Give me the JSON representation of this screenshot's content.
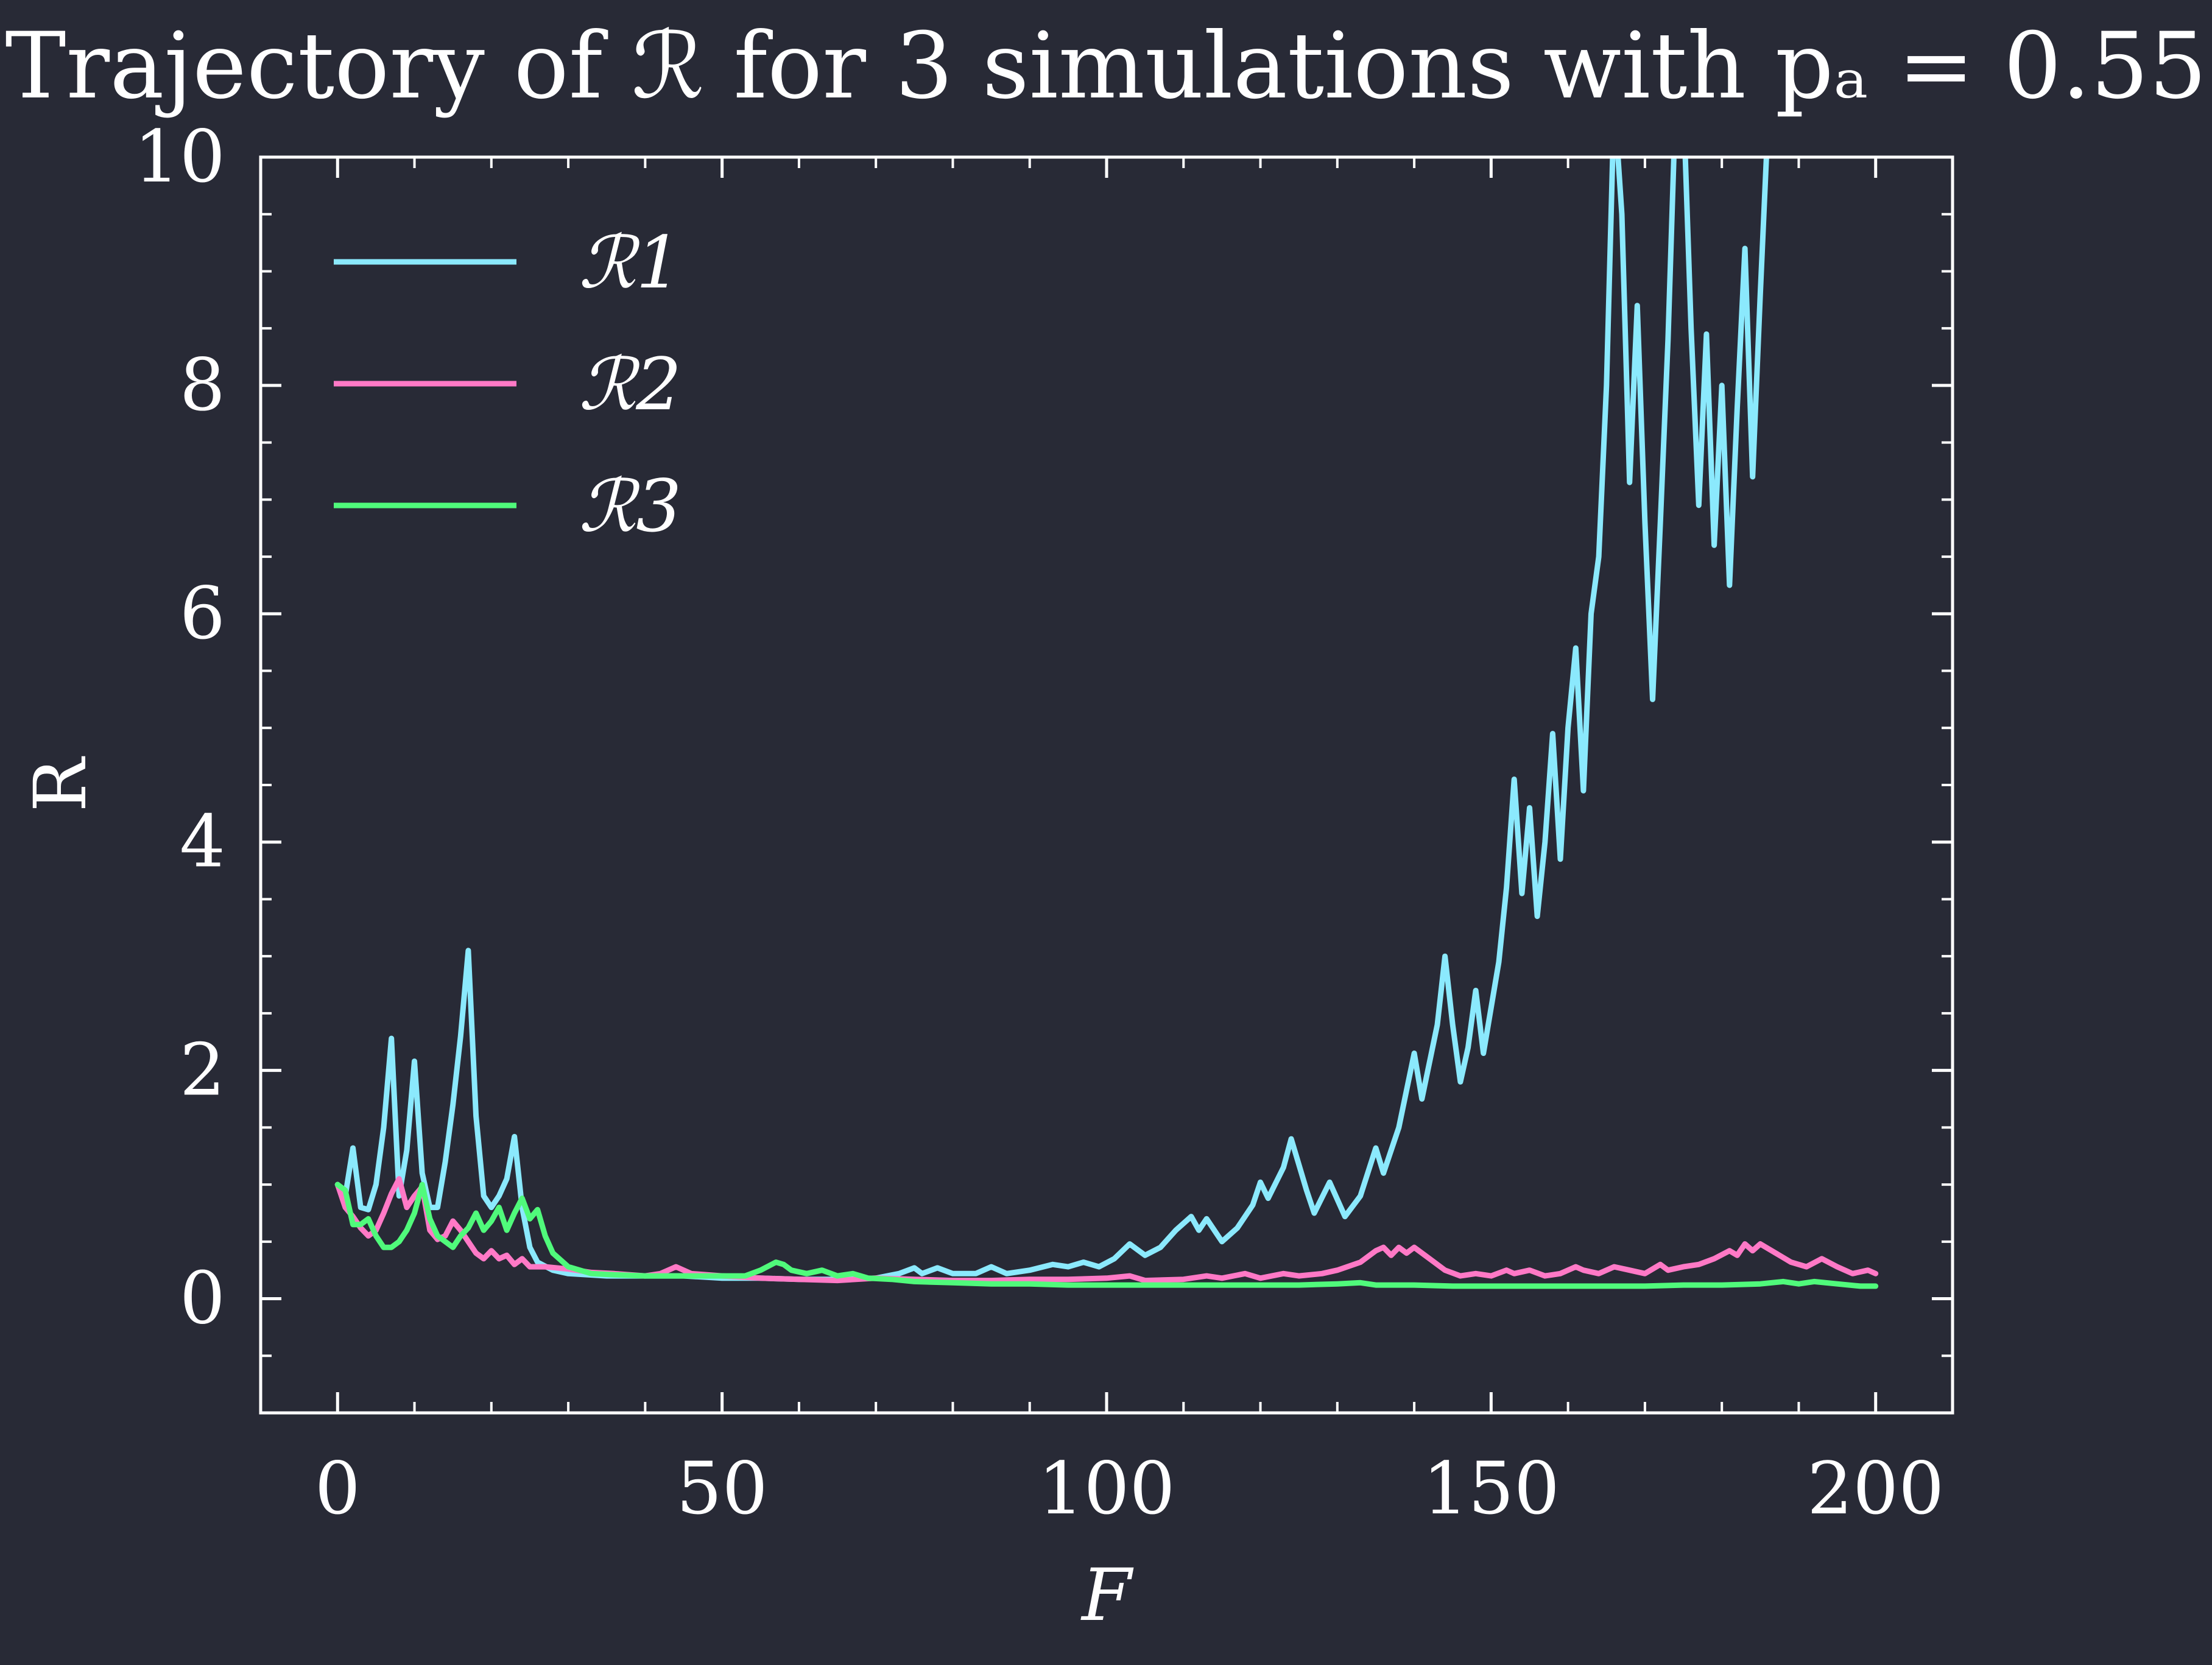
{
  "chart_data": {
    "type": "line",
    "title": "Trajectory of ℛ for 3 simulations with pₐ = 0.55",
    "xlabel": "F",
    "ylabel": "R",
    "xlim": [
      -10,
      210
    ],
    "ylim": [
      -1,
      10
    ],
    "xticks": [
      0,
      50,
      100,
      150,
      200
    ],
    "xtick_labels": [
      "0",
      "50",
      "100",
      "150",
      "200"
    ],
    "yticks": [
      0,
      2,
      4,
      6,
      8,
      10
    ],
    "ytick_labels": [
      "0",
      "2",
      "4",
      "6",
      "8",
      "10"
    ],
    "grid": false,
    "legend_position": "upper-left",
    "series": [
      {
        "name": "ℛ1",
        "color": "#8be9fd",
        "points": [
          [
            0,
            1.0
          ],
          [
            1,
            0.9
          ],
          [
            2,
            1.32
          ],
          [
            3,
            0.8
          ],
          [
            4,
            0.78
          ],
          [
            5,
            1.0
          ],
          [
            6,
            1.5
          ],
          [
            7,
            2.28
          ],
          [
            8,
            0.9
          ],
          [
            9,
            1.3
          ],
          [
            10,
            2.08
          ],
          [
            11,
            1.1
          ],
          [
            12,
            0.8
          ],
          [
            13,
            0.8
          ],
          [
            14,
            1.2
          ],
          [
            15,
            1.7
          ],
          [
            16,
            2.3
          ],
          [
            17,
            3.05
          ],
          [
            18,
            1.6
          ],
          [
            19,
            0.9
          ],
          [
            20,
            0.8
          ],
          [
            21,
            0.9
          ],
          [
            22,
            1.05
          ],
          [
            23,
            1.42
          ],
          [
            24,
            0.8
          ],
          [
            25,
            0.45
          ],
          [
            26,
            0.32
          ],
          [
            28,
            0.25
          ],
          [
            30,
            0.22
          ],
          [
            35,
            0.2
          ],
          [
            40,
            0.2
          ],
          [
            45,
            0.2
          ],
          [
            50,
            0.18
          ],
          [
            55,
            0.18
          ],
          [
            60,
            0.17
          ],
          [
            65,
            0.17
          ],
          [
            70,
            0.18
          ],
          [
            73,
            0.22
          ],
          [
            75,
            0.27
          ],
          [
            76,
            0.22
          ],
          [
            78,
            0.27
          ],
          [
            80,
            0.22
          ],
          [
            83,
            0.22
          ],
          [
            85,
            0.28
          ],
          [
            87,
            0.22
          ],
          [
            90,
            0.25
          ],
          [
            93,
            0.3
          ],
          [
            95,
            0.28
          ],
          [
            97,
            0.32
          ],
          [
            99,
            0.28
          ],
          [
            101,
            0.35
          ],
          [
            103,
            0.48
          ],
          [
            105,
            0.38
          ],
          [
            107,
            0.45
          ],
          [
            109,
            0.6
          ],
          [
            111,
            0.72
          ],
          [
            112,
            0.6
          ],
          [
            113,
            0.7
          ],
          [
            115,
            0.5
          ],
          [
            117,
            0.62
          ],
          [
            119,
            0.82
          ],
          [
            120,
            1.02
          ],
          [
            121,
            0.88
          ],
          [
            123,
            1.15
          ],
          [
            124,
            1.4
          ],
          [
            126,
            0.95
          ],
          [
            127,
            0.75
          ],
          [
            129,
            1.02
          ],
          [
            131,
            0.72
          ],
          [
            133,
            0.9
          ],
          [
            135,
            1.32
          ],
          [
            136,
            1.1
          ],
          [
            138,
            1.5
          ],
          [
            140,
            2.15
          ],
          [
            141,
            1.75
          ],
          [
            143,
            2.4
          ],
          [
            144,
            3.0
          ],
          [
            145,
            2.4
          ],
          [
            146,
            1.9
          ],
          [
            147,
            2.2
          ],
          [
            148,
            2.7
          ],
          [
            149,
            2.15
          ],
          [
            151,
            2.95
          ],
          [
            152,
            3.6
          ],
          [
            153,
            4.55
          ],
          [
            154,
            3.55
          ],
          [
            155,
            4.3
          ],
          [
            156,
            3.35
          ],
          [
            157,
            4.0
          ],
          [
            158,
            4.95
          ],
          [
            159,
            3.85
          ],
          [
            160,
            5.0
          ],
          [
            161,
            5.7
          ],
          [
            162,
            4.45
          ],
          [
            163,
            6.0
          ],
          [
            164,
            6.5
          ],
          [
            165,
            8.0
          ],
          [
            166,
            10.5
          ],
          [
            167,
            9.5
          ],
          [
            168,
            7.15
          ],
          [
            169,
            8.7
          ],
          [
            170,
            6.8
          ],
          [
            171,
            5.25
          ],
          [
            172,
            6.8
          ],
          [
            173,
            8.4
          ],
          [
            174,
            10.5
          ],
          [
            175,
            10.5
          ],
          [
            176,
            8.5
          ],
          [
            177,
            6.95
          ],
          [
            178,
            8.45
          ],
          [
            179,
            6.6
          ],
          [
            180,
            8.0
          ],
          [
            181,
            6.25
          ],
          [
            182,
            7.8
          ],
          [
            183,
            9.2
          ],
          [
            184,
            7.2
          ],
          [
            185,
            8.8
          ],
          [
            186,
            10.3
          ]
        ]
      },
      {
        "name": "ℛ2",
        "color": "#ff79c6",
        "points": [
          [
            0,
            1.0
          ],
          [
            1,
            0.8
          ],
          [
            2,
            0.72
          ],
          [
            3,
            0.62
          ],
          [
            4,
            0.55
          ],
          [
            5,
            0.6
          ],
          [
            6,
            0.75
          ],
          [
            7,
            0.92
          ],
          [
            8,
            1.05
          ],
          [
            9,
            0.8
          ],
          [
            10,
            0.9
          ],
          [
            11,
            0.98
          ],
          [
            12,
            0.6
          ],
          [
            13,
            0.52
          ],
          [
            14,
            0.55
          ],
          [
            15,
            0.68
          ],
          [
            16,
            0.6
          ],
          [
            17,
            0.5
          ],
          [
            18,
            0.4
          ],
          [
            19,
            0.35
          ],
          [
            20,
            0.42
          ],
          [
            21,
            0.35
          ],
          [
            22,
            0.38
          ],
          [
            23,
            0.3
          ],
          [
            24,
            0.35
          ],
          [
            25,
            0.28
          ],
          [
            27,
            0.28
          ],
          [
            30,
            0.26
          ],
          [
            33,
            0.23
          ],
          [
            36,
            0.22
          ],
          [
            40,
            0.2
          ],
          [
            42,
            0.22
          ],
          [
            44,
            0.28
          ],
          [
            46,
            0.22
          ],
          [
            50,
            0.2
          ],
          [
            55,
            0.18
          ],
          [
            60,
            0.17
          ],
          [
            65,
            0.16
          ],
          [
            70,
            0.18
          ],
          [
            75,
            0.17
          ],
          [
            80,
            0.16
          ],
          [
            85,
            0.16
          ],
          [
            90,
            0.17
          ],
          [
            95,
            0.17
          ],
          [
            100,
            0.18
          ],
          [
            103,
            0.2
          ],
          [
            105,
            0.16
          ],
          [
            110,
            0.17
          ],
          [
            113,
            0.2
          ],
          [
            115,
            0.18
          ],
          [
            118,
            0.22
          ],
          [
            120,
            0.18
          ],
          [
            123,
            0.22
          ],
          [
            125,
            0.2
          ],
          [
            128,
            0.22
          ],
          [
            130,
            0.25
          ],
          [
            133,
            0.32
          ],
          [
            135,
            0.42
          ],
          [
            136,
            0.45
          ],
          [
            137,
            0.38
          ],
          [
            138,
            0.45
          ],
          [
            139,
            0.4
          ],
          [
            140,
            0.45
          ],
          [
            142,
            0.35
          ],
          [
            144,
            0.25
          ],
          [
            146,
            0.2
          ],
          [
            148,
            0.22
          ],
          [
            150,
            0.2
          ],
          [
            152,
            0.25
          ],
          [
            153,
            0.22
          ],
          [
            155,
            0.25
          ],
          [
            157,
            0.2
          ],
          [
            159,
            0.22
          ],
          [
            161,
            0.28
          ],
          [
            162,
            0.25
          ],
          [
            164,
            0.22
          ],
          [
            166,
            0.28
          ],
          [
            168,
            0.25
          ],
          [
            170,
            0.22
          ],
          [
            172,
            0.3
          ],
          [
            173,
            0.25
          ],
          [
            175,
            0.28
          ],
          [
            177,
            0.3
          ],
          [
            179,
            0.35
          ],
          [
            181,
            0.42
          ],
          [
            182,
            0.38
          ],
          [
            183,
            0.48
          ],
          [
            184,
            0.42
          ],
          [
            185,
            0.48
          ],
          [
            187,
            0.4
          ],
          [
            189,
            0.32
          ],
          [
            191,
            0.28
          ],
          [
            193,
            0.35
          ],
          [
            195,
            0.28
          ],
          [
            197,
            0.22
          ],
          [
            199,
            0.25
          ],
          [
            200,
            0.22
          ]
        ]
      },
      {
        "name": "ℛ3",
        "color": "#50fa7b",
        "points": [
          [
            0,
            1.0
          ],
          [
            1,
            0.95
          ],
          [
            2,
            0.65
          ],
          [
            3,
            0.65
          ],
          [
            4,
            0.7
          ],
          [
            5,
            0.55
          ],
          [
            6,
            0.45
          ],
          [
            7,
            0.45
          ],
          [
            8,
            0.5
          ],
          [
            9,
            0.6
          ],
          [
            10,
            0.75
          ],
          [
            11,
            1.0
          ],
          [
            12,
            0.7
          ],
          [
            13,
            0.55
          ],
          [
            14,
            0.5
          ],
          [
            15,
            0.45
          ],
          [
            16,
            0.55
          ],
          [
            17,
            0.62
          ],
          [
            18,
            0.75
          ],
          [
            19,
            0.6
          ],
          [
            20,
            0.68
          ],
          [
            21,
            0.8
          ],
          [
            22,
            0.6
          ],
          [
            23,
            0.75
          ],
          [
            24,
            0.88
          ],
          [
            25,
            0.7
          ],
          [
            26,
            0.78
          ],
          [
            27,
            0.55
          ],
          [
            28,
            0.4
          ],
          [
            30,
            0.28
          ],
          [
            33,
            0.22
          ],
          [
            36,
            0.21
          ],
          [
            40,
            0.2
          ],
          [
            45,
            0.2
          ],
          [
            50,
            0.2
          ],
          [
            53,
            0.2
          ],
          [
            55,
            0.25
          ],
          [
            57,
            0.32
          ],
          [
            58,
            0.3
          ],
          [
            59,
            0.25
          ],
          [
            61,
            0.22
          ],
          [
            63,
            0.25
          ],
          [
            65,
            0.2
          ],
          [
            67,
            0.22
          ],
          [
            69,
            0.18
          ],
          [
            72,
            0.17
          ],
          [
            75,
            0.15
          ],
          [
            80,
            0.14
          ],
          [
            85,
            0.13
          ],
          [
            90,
            0.13
          ],
          [
            95,
            0.12
          ],
          [
            100,
            0.12
          ],
          [
            105,
            0.12
          ],
          [
            110,
            0.12
          ],
          [
            115,
            0.12
          ],
          [
            120,
            0.12
          ],
          [
            125,
            0.12
          ],
          [
            130,
            0.13
          ],
          [
            133,
            0.14
          ],
          [
            135,
            0.12
          ],
          [
            140,
            0.12
          ],
          [
            145,
            0.11
          ],
          [
            150,
            0.11
          ],
          [
            155,
            0.11
          ],
          [
            160,
            0.11
          ],
          [
            165,
            0.11
          ],
          [
            170,
            0.11
          ],
          [
            175,
            0.12
          ],
          [
            180,
            0.12
          ],
          [
            185,
            0.13
          ],
          [
            188,
            0.15
          ],
          [
            190,
            0.13
          ],
          [
            192,
            0.15
          ],
          [
            195,
            0.13
          ],
          [
            198,
            0.11
          ],
          [
            200,
            0.11
          ]
        ]
      }
    ]
  }
}
